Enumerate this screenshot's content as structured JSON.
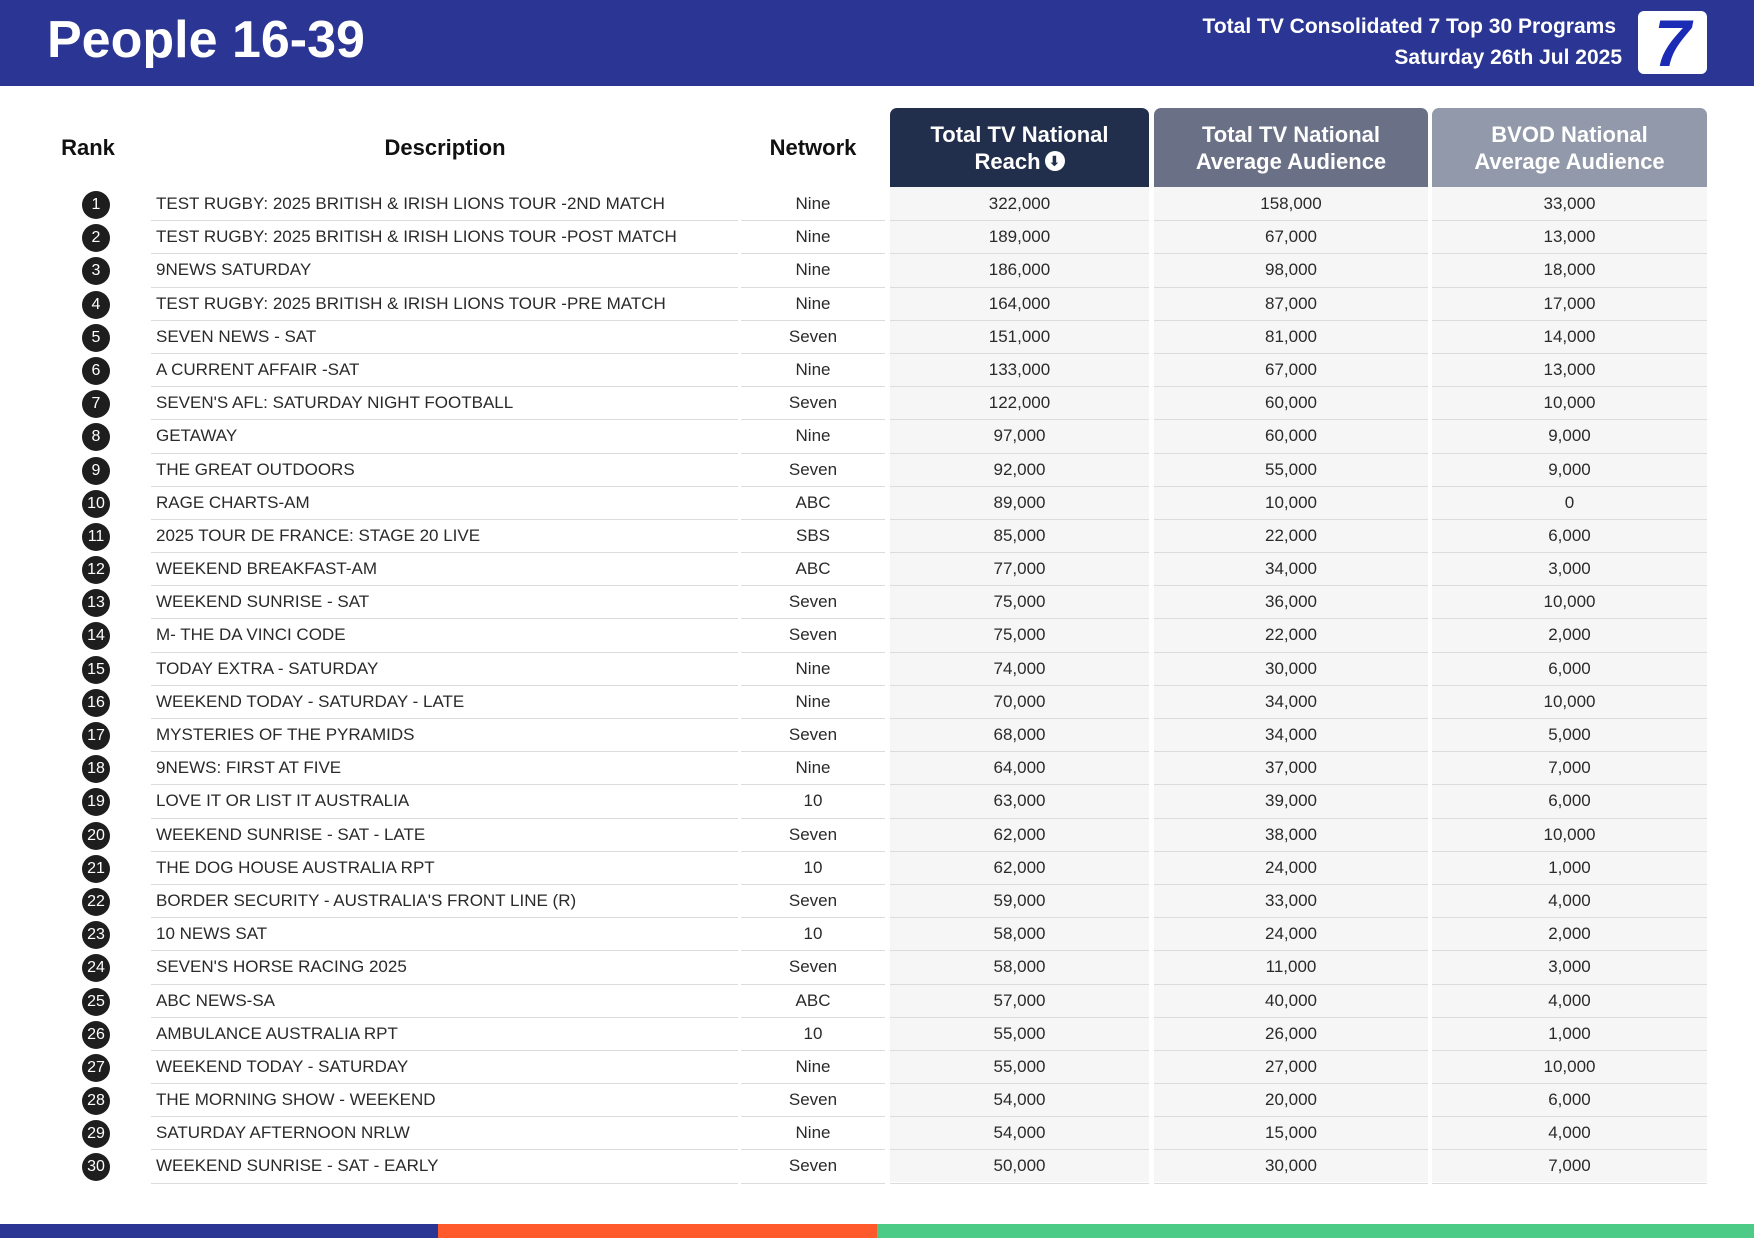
{
  "header": {
    "title": "People 16-39",
    "subtitle_line1": "Total TV Consolidated 7 Top 30 Programs",
    "subtitle_line2": "Saturday 26th Jul 2025",
    "logo_text": "7",
    "logo_icon": "channel-7-logo"
  },
  "columns": {
    "rank": "Rank",
    "description": "Description",
    "network": "Network",
    "reach_line1": "Total TV National",
    "reach_line2": "Reach",
    "sort_icon": "arrow-down-circle-icon",
    "avg_line1": "Total TV National",
    "avg_line2": "Average Audience",
    "bvod_line1": "BVOD National",
    "bvod_line2": "Average Audience"
  },
  "colors": {
    "header_bg": "#2b3593",
    "reach_header": "#222f4c",
    "avg_header": "#6a7186",
    "bvod_header": "#9299aa",
    "footer_blue": "#2b3593",
    "footer_orange": "#ff5a2b",
    "footer_green": "#4ccb86"
  },
  "rows": [
    {
      "rank": "1",
      "description": "TEST RUGBY: 2025 BRITISH & IRISH LIONS TOUR -2ND MATCH",
      "network": "Nine",
      "reach": "322,000",
      "avg": "158,000",
      "bvod": "33,000"
    },
    {
      "rank": "2",
      "description": "TEST RUGBY: 2025 BRITISH & IRISH LIONS TOUR -POST MATCH",
      "network": "Nine",
      "reach": "189,000",
      "avg": "67,000",
      "bvod": "13,000"
    },
    {
      "rank": "3",
      "description": "9NEWS SATURDAY",
      "network": "Nine",
      "reach": "186,000",
      "avg": "98,000",
      "bvod": "18,000"
    },
    {
      "rank": "4",
      "description": "TEST RUGBY: 2025 BRITISH & IRISH LIONS TOUR -PRE MATCH",
      "network": "Nine",
      "reach": "164,000",
      "avg": "87,000",
      "bvod": "17,000"
    },
    {
      "rank": "5",
      "description": "SEVEN NEWS - SAT",
      "network": "Seven",
      "reach": "151,000",
      "avg": "81,000",
      "bvod": "14,000"
    },
    {
      "rank": "6",
      "description": "A CURRENT AFFAIR -SAT",
      "network": "Nine",
      "reach": "133,000",
      "avg": "67,000",
      "bvod": "13,000"
    },
    {
      "rank": "7",
      "description": "SEVEN'S AFL: SATURDAY NIGHT FOOTBALL",
      "network": "Seven",
      "reach": "122,000",
      "avg": "60,000",
      "bvod": "10,000"
    },
    {
      "rank": "8",
      "description": "GETAWAY",
      "network": "Nine",
      "reach": "97,000",
      "avg": "60,000",
      "bvod": "9,000"
    },
    {
      "rank": "9",
      "description": "THE GREAT OUTDOORS",
      "network": "Seven",
      "reach": "92,000",
      "avg": "55,000",
      "bvod": "9,000"
    },
    {
      "rank": "10",
      "description": "RAGE CHARTS-AM",
      "network": "ABC",
      "reach": "89,000",
      "avg": "10,000",
      "bvod": "0"
    },
    {
      "rank": "11",
      "description": "2025 TOUR DE FRANCE: STAGE 20 LIVE",
      "network": "SBS",
      "reach": "85,000",
      "avg": "22,000",
      "bvod": "6,000"
    },
    {
      "rank": "12",
      "description": "WEEKEND BREAKFAST-AM",
      "network": "ABC",
      "reach": "77,000",
      "avg": "34,000",
      "bvod": "3,000"
    },
    {
      "rank": "13",
      "description": "WEEKEND SUNRISE - SAT",
      "network": "Seven",
      "reach": "75,000",
      "avg": "36,000",
      "bvod": "10,000"
    },
    {
      "rank": "14",
      "description": "M- THE DA VINCI CODE",
      "network": "Seven",
      "reach": "75,000",
      "avg": "22,000",
      "bvod": "2,000"
    },
    {
      "rank": "15",
      "description": "TODAY EXTRA - SATURDAY",
      "network": "Nine",
      "reach": "74,000",
      "avg": "30,000",
      "bvod": "6,000"
    },
    {
      "rank": "16",
      "description": "WEEKEND TODAY - SATURDAY - LATE",
      "network": "Nine",
      "reach": "70,000",
      "avg": "34,000",
      "bvod": "10,000"
    },
    {
      "rank": "17",
      "description": "MYSTERIES OF THE PYRAMIDS",
      "network": "Seven",
      "reach": "68,000",
      "avg": "34,000",
      "bvod": "5,000"
    },
    {
      "rank": "18",
      "description": "9NEWS: FIRST AT FIVE",
      "network": "Nine",
      "reach": "64,000",
      "avg": "37,000",
      "bvod": "7,000"
    },
    {
      "rank": "19",
      "description": "LOVE IT OR LIST IT AUSTRALIA",
      "network": "10",
      "reach": "63,000",
      "avg": "39,000",
      "bvod": "6,000"
    },
    {
      "rank": "20",
      "description": "WEEKEND SUNRISE - SAT - LATE",
      "network": "Seven",
      "reach": "62,000",
      "avg": "38,000",
      "bvod": "10,000"
    },
    {
      "rank": "21",
      "description": "THE DOG HOUSE AUSTRALIA RPT",
      "network": "10",
      "reach": "62,000",
      "avg": "24,000",
      "bvod": "1,000"
    },
    {
      "rank": "22",
      "description": "BORDER SECURITY - AUSTRALIA'S FRONT LINE (R)",
      "network": "Seven",
      "reach": "59,000",
      "avg": "33,000",
      "bvod": "4,000"
    },
    {
      "rank": "23",
      "description": "10 NEWS SAT",
      "network": "10",
      "reach": "58,000",
      "avg": "24,000",
      "bvod": "2,000"
    },
    {
      "rank": "24",
      "description": "SEVEN'S HORSE RACING 2025",
      "network": "Seven",
      "reach": "58,000",
      "avg": "11,000",
      "bvod": "3,000"
    },
    {
      "rank": "25",
      "description": "ABC NEWS-SA",
      "network": "ABC",
      "reach": "57,000",
      "avg": "40,000",
      "bvod": "4,000"
    },
    {
      "rank": "26",
      "description": "AMBULANCE AUSTRALIA RPT",
      "network": "10",
      "reach": "55,000",
      "avg": "26,000",
      "bvod": "1,000"
    },
    {
      "rank": "27",
      "description": "WEEKEND TODAY - SATURDAY",
      "network": "Nine",
      "reach": "55,000",
      "avg": "27,000",
      "bvod": "10,000"
    },
    {
      "rank": "28",
      "description": "THE MORNING SHOW - WEEKEND",
      "network": "Seven",
      "reach": "54,000",
      "avg": "20,000",
      "bvod": "6,000"
    },
    {
      "rank": "29",
      "description": "SATURDAY AFTERNOON NRLW",
      "network": "Nine",
      "reach": "54,000",
      "avg": "15,000",
      "bvod": "4,000"
    },
    {
      "rank": "30",
      "description": "WEEKEND SUNRISE - SAT - EARLY",
      "network": "Seven",
      "reach": "50,000",
      "avg": "30,000",
      "bvod": "7,000"
    }
  ]
}
